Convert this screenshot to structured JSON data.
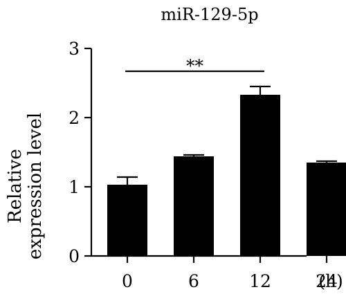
{
  "chart_data": {
    "type": "bar",
    "title": "miR-129-5p",
    "ylabel_lines": [
      "Relative",
      "expression level"
    ],
    "x_unit": "(h)",
    "categories": [
      "0",
      "6",
      "12",
      "24"
    ],
    "values": [
      1.03,
      1.44,
      2.33,
      1.35
    ],
    "errors": [
      0.11,
      0.02,
      0.12,
      0.02
    ],
    "ylim": [
      0,
      3
    ],
    "yticks": [
      0,
      1,
      2,
      3
    ],
    "yticklabels": [
      "0",
      "1",
      "2",
      "3"
    ],
    "bar_color": "#000000",
    "grid": false,
    "legend": "none",
    "significance": [
      {
        "from": "0",
        "to": "12",
        "label": "**"
      }
    ]
  }
}
